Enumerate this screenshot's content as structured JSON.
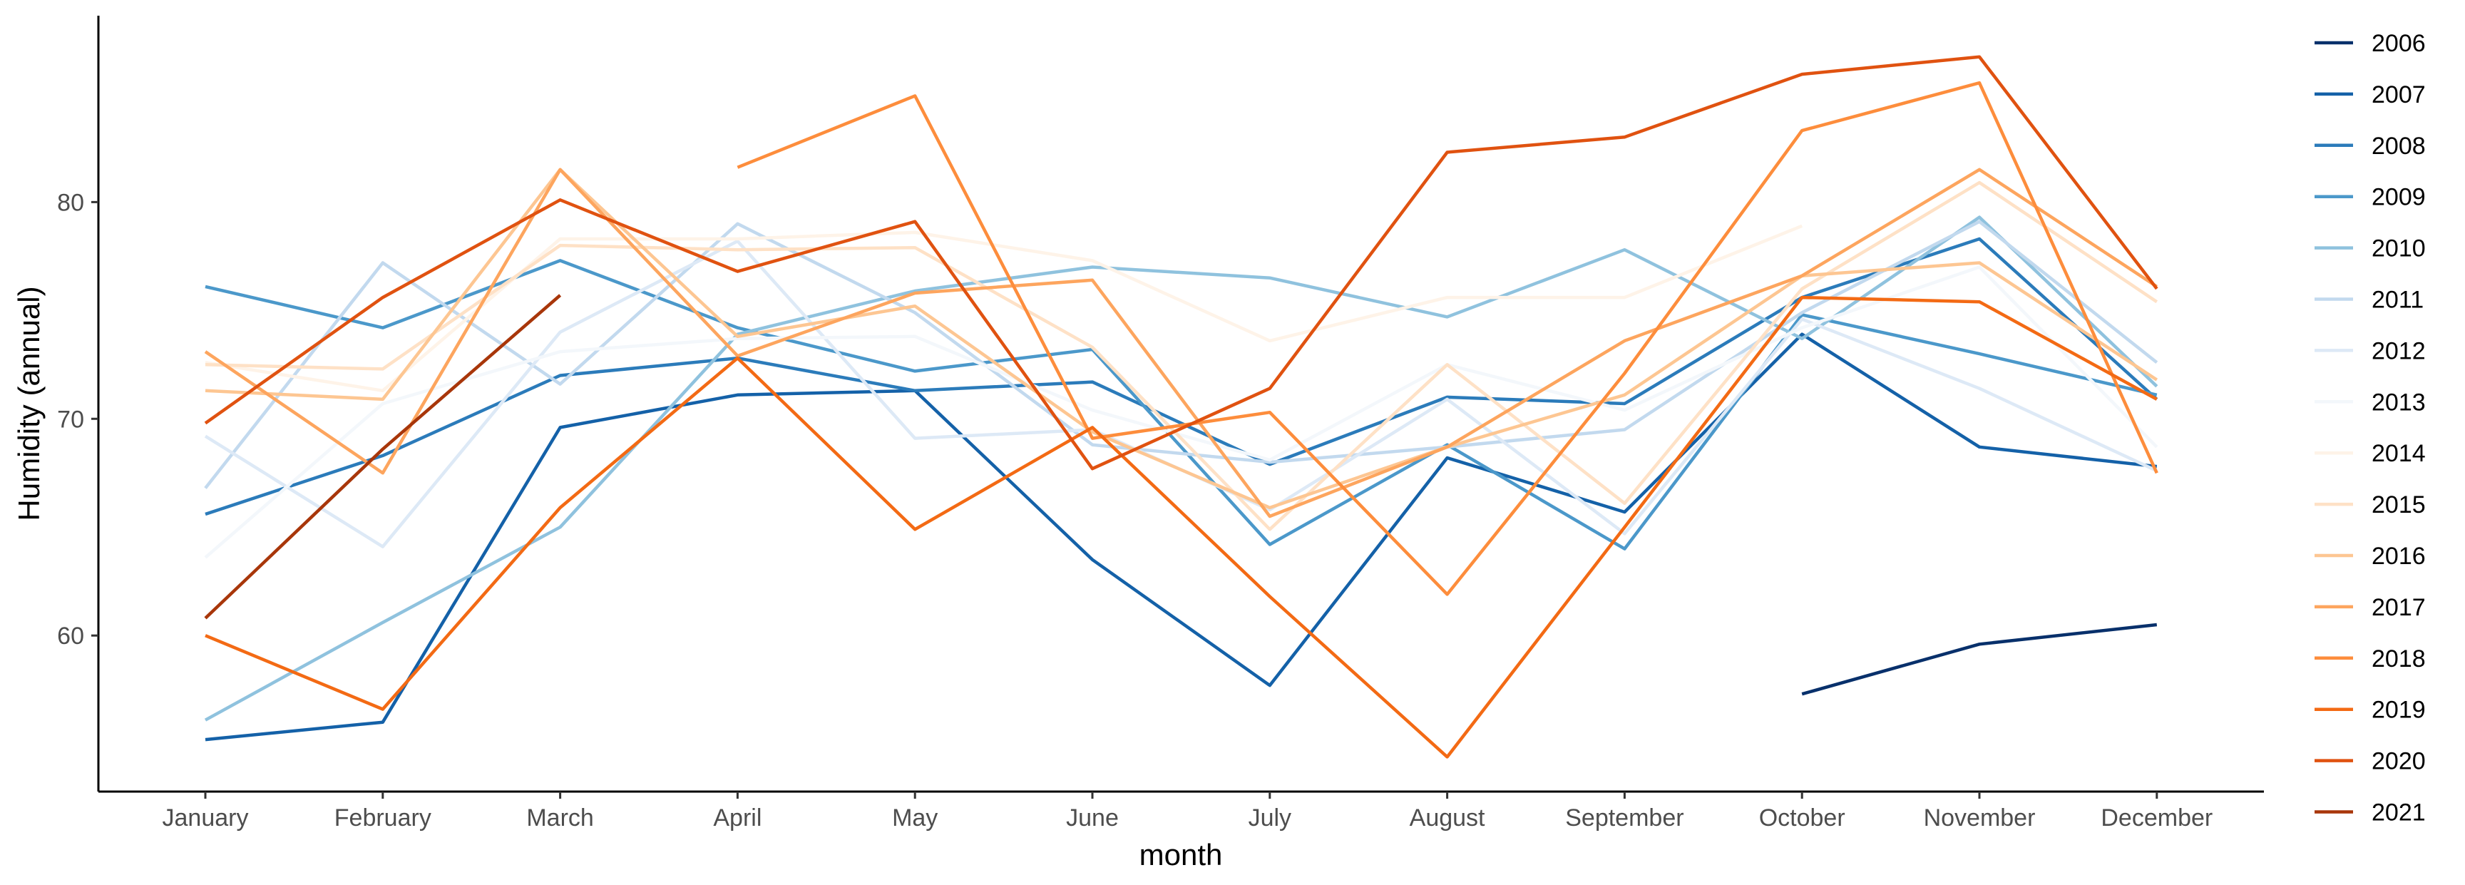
{
  "chart_data": {
    "type": "line",
    "title": "",
    "xlabel": "month",
    "ylabel": "Humidity (annual)",
    "categories": [
      "January",
      "February",
      "March",
      "April",
      "May",
      "June",
      "July",
      "August",
      "September",
      "October",
      "November",
      "December"
    ],
    "ylim": [
      52.8,
      88.6
    ],
    "yticks": [
      60,
      70,
      80
    ],
    "grid": false,
    "legend_position": "right",
    "series": [
      {
        "name": "2006",
        "color": "#08306b",
        "values": [
          null,
          null,
          null,
          null,
          null,
          null,
          null,
          null,
          null,
          57.3,
          59.6,
          60.5
        ]
      },
      {
        "name": "2007",
        "color": "#1461a8",
        "values": [
          55.2,
          56.0,
          69.6,
          71.1,
          71.3,
          63.5,
          57.7,
          68.2,
          65.7,
          73.9,
          68.7,
          67.8
        ]
      },
      {
        "name": "2008",
        "color": "#2b7bba",
        "values": [
          65.6,
          68.3,
          72.0,
          72.8,
          71.3,
          71.7,
          67.9,
          71.0,
          70.7,
          75.6,
          78.3,
          70.9
        ]
      },
      {
        "name": "2009",
        "color": "#4b98ca",
        "values": [
          76.1,
          74.2,
          77.3,
          74.2,
          72.2,
          73.2,
          64.2,
          68.8,
          64.0,
          74.8,
          73.0,
          71.1
        ]
      },
      {
        "name": "2010",
        "color": "#8fc2de",
        "values": [
          56.1,
          60.6,
          65.0,
          73.9,
          75.9,
          77.0,
          76.5,
          74.7,
          77.8,
          73.7,
          79.3,
          71.5
        ]
      },
      {
        "name": "2011",
        "color": "#c2d9ee",
        "values": [
          66.8,
          77.2,
          71.6,
          79.0,
          74.9,
          68.8,
          68.0,
          68.7,
          69.5,
          74.9,
          79.1,
          72.6
        ]
      },
      {
        "name": "2012",
        "color": "#dde9f6",
        "values": [
          69.2,
          64.1,
          74.0,
          78.2,
          69.1,
          69.5,
          65.8,
          70.9,
          64.7,
          74.6,
          71.4,
          67.6
        ]
      },
      {
        "name": "2013",
        "color": "#f3f7fb",
        "values": [
          63.6,
          70.7,
          73.1,
          73.7,
          73.8,
          70.4,
          68.1,
          72.5,
          70.4,
          74.2,
          77.0,
          68.7
        ]
      },
      {
        "name": "2014",
        "color": "#fef3e8",
        "values": [
          72.6,
          71.3,
          78.3,
          78.3,
          78.6,
          77.3,
          73.6,
          75.6,
          75.6,
          78.9,
          null,
          null
        ]
      },
      {
        "name": "2015",
        "color": "#fee1c6",
        "values": [
          72.5,
          72.3,
          78.0,
          77.8,
          77.9,
          73.3,
          64.9,
          72.5,
          66.1,
          76.0,
          80.9,
          75.4
        ]
      },
      {
        "name": "2016",
        "color": "#fdc692",
        "values": [
          71.3,
          70.9,
          81.5,
          73.8,
          75.2,
          69.4,
          65.9,
          68.7,
          71.1,
          76.6,
          77.2,
          71.8
        ]
      },
      {
        "name": "2017",
        "color": "#fda55e",
        "values": [
          73.1,
          67.5,
          81.5,
          72.9,
          75.8,
          76.4,
          65.5,
          68.7,
          73.6,
          76.6,
          81.5,
          76.1
        ]
      },
      {
        "name": "2018",
        "color": "#fd8d3c",
        "values": [
          null,
          null,
          null,
          81.6,
          84.9,
          69.1,
          70.3,
          61.9,
          72.1,
          83.3,
          85.5,
          67.5
        ]
      },
      {
        "name": "2019",
        "color": "#f36a14",
        "values": [
          60.0,
          56.6,
          65.9,
          72.8,
          64.9,
          69.6,
          61.8,
          54.4,
          65.0,
          75.6,
          75.4,
          70.9
        ]
      },
      {
        "name": "2020",
        "color": "#e05210",
        "values": [
          69.8,
          75.6,
          80.1,
          76.8,
          79.1,
          67.7,
          71.4,
          82.3,
          83.0,
          85.9,
          86.7,
          76.0
        ]
      },
      {
        "name": "2021",
        "color": "#a8360a",
        "values": [
          60.8,
          68.6,
          75.7,
          null,
          null,
          null,
          null,
          null,
          null,
          null,
          null,
          null
        ]
      }
    ]
  }
}
